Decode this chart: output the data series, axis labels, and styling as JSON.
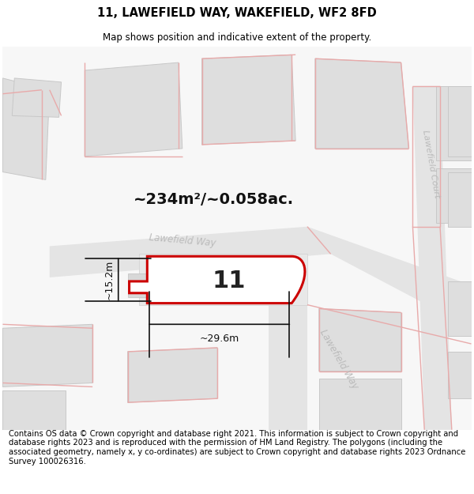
{
  "title": "11, LAWEFIELD WAY, WAKEFIELD, WF2 8FD",
  "subtitle": "Map shows position and indicative extent of the property.",
  "area_label": "~234m²/~0.058ac.",
  "number_label": "11",
  "width_label": "~29.6m",
  "height_label": "~15.2m",
  "footer": "Contains OS data © Crown copyright and database right 2021. This information is subject to Crown copyright and database rights 2023 and is reproduced with the permission of HM Land Registry. The polygons (including the associated geometry, namely x, y co-ordinates) are subject to Crown copyright and database rights 2023 Ordnance Survey 100026316.",
  "bg_color": "#f7f7f7",
  "bld_fill": "#dedede",
  "bld_edge": "#c8c8c8",
  "road_fill": "#ebebeb",
  "pink": "#e8aaaa",
  "red": "#cc0000",
  "street_color": "#bbbbbb",
  "dim_color": "#111111",
  "title_fontsize": 10.5,
  "subtitle_fontsize": 8.5,
  "footer_fontsize": 7.2,
  "area_fontsize": 14,
  "number_fontsize": 22,
  "dim_fontsize": 9
}
